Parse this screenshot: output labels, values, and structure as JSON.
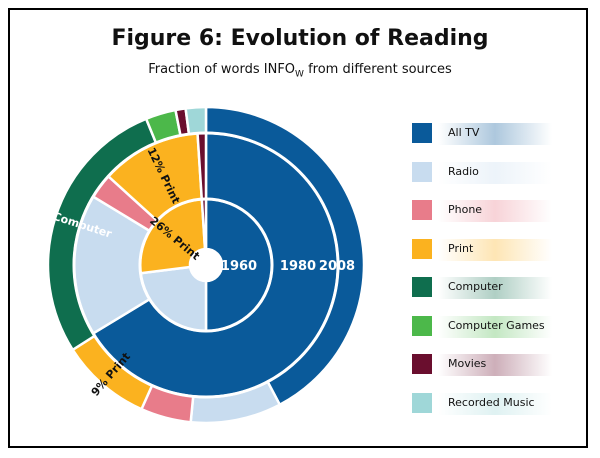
{
  "title": "Figure 6:  Evolution of Reading",
  "subtitle": {
    "prefix": "Fraction of words INFO",
    "subscript": "W",
    "suffix": " from different sources"
  },
  "chart_data": {
    "type": "pie",
    "ring_labels": [
      "1960",
      "1980",
      "2008"
    ],
    "categories": [
      "All TV",
      "Radio",
      "Phone",
      "Print",
      "Computer",
      "Computer Games",
      "Movies",
      "Recorded Music"
    ],
    "colors": [
      "#0a5a9a",
      "#c8dcef",
      "#e87c8a",
      "#fbb21f",
      "#0f6e4e",
      "#4cb84a",
      "#6a0e2e",
      "#9fd7d8"
    ],
    "series": [
      {
        "name": "1960",
        "values": [
          50,
          23,
          0,
          26,
          0,
          0,
          1,
          0
        ]
      },
      {
        "name": "1980",
        "values": [
          65,
          17,
          3,
          12,
          0,
          0,
          1,
          0
        ]
      },
      {
        "name": "2008",
        "values": [
          41,
          9,
          5,
          9,
          27,
          3,
          1,
          2
        ]
      }
    ],
    "slice_labels": [
      {
        "series": 0,
        "category": 3,
        "text": "26% Print"
      },
      {
        "series": 1,
        "category": 3,
        "text": "12% Print"
      },
      {
        "series": 2,
        "category": 3,
        "text": "9% Print"
      },
      {
        "series": 2,
        "category": 4,
        "text": "27% Computer"
      }
    ]
  }
}
